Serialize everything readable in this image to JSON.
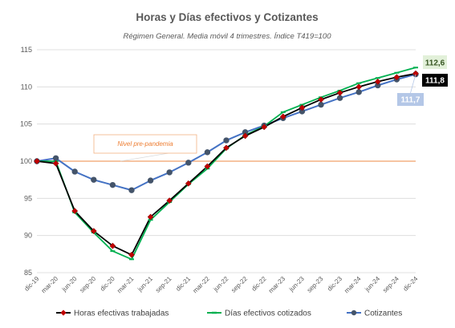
{
  "chart_data": {
    "type": "line",
    "title": "Horas y Días efectivos y Cotizantes",
    "subtitle": "Régimen General. Media móvil 4 trimestres. Índice T419=100",
    "ylim": [
      85,
      115
    ],
    "yticks": [
      "85",
      "90",
      "95",
      "100",
      "105",
      "110",
      "115"
    ],
    "grid": true,
    "legend_position": "bottom",
    "categories": [
      "dic-19",
      "mar-20",
      "jun-20",
      "sep-20",
      "dic-20",
      "mar-21",
      "jun-21",
      "sep-21",
      "dic-21",
      "mar-22",
      "jun-22",
      "sep-22",
      "dic-22",
      "mar-23",
      "jun-23",
      "sep-23",
      "dic-23",
      "mar-24",
      "jun-24",
      "sep-24",
      "dic-24"
    ],
    "series": [
      {
        "name": "Horas efectivas trabajadas",
        "color": "#000000",
        "marker_color": "#c00000",
        "marker": "diamond",
        "values": [
          100.0,
          99.7,
          93.3,
          90.6,
          88.6,
          87.4,
          92.5,
          94.7,
          97.0,
          99.3,
          101.8,
          103.4,
          104.6,
          106.0,
          107.2,
          108.3,
          109.2,
          110.0,
          110.7,
          111.3,
          111.8
        ]
      },
      {
        "name": "Días efectivos cotizados",
        "color": "#00b050",
        "marker_color": "#00b050",
        "marker": "dash",
        "values": [
          100.0,
          100.0,
          93.1,
          90.4,
          87.9,
          86.8,
          92.1,
          94.5,
          96.9,
          99.0,
          101.7,
          103.5,
          104.7,
          106.6,
          107.6,
          108.6,
          109.5,
          110.5,
          111.2,
          111.9,
          112.6
        ]
      },
      {
        "name": "Cotizantes",
        "color": "#4472c4",
        "marker_color": "#44546a",
        "marker": "circle",
        "values": [
          100.0,
          100.4,
          98.6,
          97.5,
          96.8,
          96.1,
          97.4,
          98.5,
          99.8,
          101.2,
          102.8,
          103.9,
          104.8,
          105.8,
          106.7,
          107.6,
          108.5,
          109.3,
          110.2,
          111.0,
          111.7
        ]
      }
    ],
    "reference_line": {
      "value": 100,
      "color": "#f4b183"
    },
    "annotations": {
      "reference_label": "Nivel pre-pandemia",
      "end_labels": [
        {
          "text": "112,6",
          "series": "Días efectivos cotizados",
          "bg": "#e2f0d9",
          "fg": "#385723"
        },
        {
          "text": "111,8",
          "series": "Horas efectivas trabajadas",
          "bg": "#000000",
          "fg": "#ffffff"
        },
        {
          "text": "111,7",
          "series": "Cotizantes",
          "bg": "#b4c7e7",
          "fg": "#ffffff"
        }
      ]
    }
  }
}
